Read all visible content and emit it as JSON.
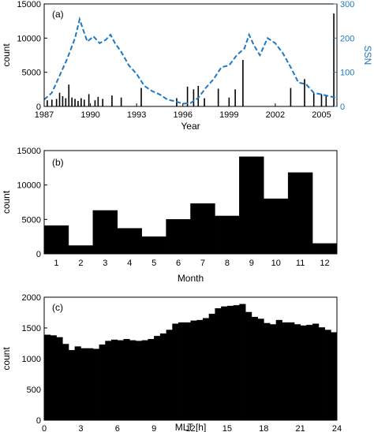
{
  "chart_data": [
    {
      "type": "bar",
      "panel_label": "(a)",
      "xlabel": "Year",
      "ylabel": "count",
      "y2label": "SSN",
      "xlim": [
        1987,
        2006
      ],
      "ylim": [
        0,
        15000
      ],
      "y2lim": [
        0,
        300
      ],
      "xticks": [
        "1987",
        "1990",
        "1993",
        "1996",
        "1999",
        "2002",
        "2005"
      ],
      "yticks": [
        "0",
        "5000",
        "10000",
        "15000"
      ],
      "y2ticks": [
        "0",
        "100",
        "200",
        "300"
      ],
      "colors": {
        "bars": "#000000",
        "ssn": "#1f78c1"
      },
      "bars": {
        "x": [
          1987.2,
          1987.5,
          1987.8,
          1988.0,
          1988.2,
          1988.4,
          1988.6,
          1988.8,
          1989.0,
          1989.2,
          1989.4,
          1989.6,
          1989.9,
          1990.3,
          1990.5,
          1990.8,
          1991.4,
          1992.0,
          1993.3,
          1995.6,
          1996.3,
          1996.7,
          1997.0,
          1997.4,
          1998.3,
          1999.0,
          1999.4,
          1999.9,
          2003.0,
          2003.9,
          2004.5,
          2005.0,
          2005.3,
          2005.8
        ],
        "values": [
          900,
          1000,
          1100,
          2000,
          1500,
          1200,
          3200,
          1300,
          1100,
          800,
          1200,
          1000,
          1800,
          900,
          1400,
          1100,
          1600,
          1300,
          2700,
          1200,
          2900,
          2500,
          3000,
          1200,
          2600,
          1300,
          2500,
          6800,
          2700,
          4000,
          2000,
          1800,
          1500,
          13600
        ]
      },
      "ssn": {
        "x": [
          1987.0,
          1987.5,
          1988.0,
          1988.5,
          1989.0,
          1989.3,
          1989.6,
          1989.8,
          1990.2,
          1990.6,
          1991.0,
          1991.3,
          1991.6,
          1992.0,
          1992.5,
          1993.0,
          1993.5,
          1994.0,
          1994.5,
          1995.0,
          1995.5,
          1996.0,
          1996.5,
          1997.0,
          1997.5,
          1998.0,
          1998.5,
          1999.0,
          1999.5,
          2000.0,
          2000.3,
          2000.6,
          2001.0,
          2001.5,
          2002.0,
          2002.5,
          2003.0,
          2003.5,
          2004.0,
          2004.5,
          2005.0,
          2005.5,
          2006.0
        ],
        "values": [
          20,
          40,
          90,
          140,
          200,
          255,
          215,
          190,
          205,
          185,
          195,
          210,
          185,
          160,
          120,
          95,
          60,
          45,
          35,
          20,
          15,
          8,
          10,
          25,
          55,
          80,
          115,
          120,
          150,
          170,
          210,
          180,
          150,
          200,
          185,
          155,
          115,
          70,
          65,
          40,
          35,
          30,
          25
        ]
      }
    },
    {
      "type": "bar",
      "panel_label": "(b)",
      "xlabel": "Month",
      "ylabel": "count",
      "ylim": [
        0,
        15000
      ],
      "yticks": [
        "0",
        "5000",
        "10000",
        "15000"
      ],
      "categories": [
        "1",
        "2",
        "3",
        "4",
        "5",
        "6",
        "7",
        "8",
        "9",
        "10",
        "11",
        "12"
      ],
      "values": [
        4100,
        1200,
        6300,
        3700,
        2500,
        5000,
        7300,
        5500,
        14100,
        8000,
        11800,
        1500
      ]
    },
    {
      "type": "bar",
      "panel_label": "(c)",
      "xlabel": "MLT [h]",
      "ylabel": "count",
      "xlim": [
        0,
        24
      ],
      "ylim": [
        0,
        2000
      ],
      "xticks": [
        "0",
        "3",
        "6",
        "9",
        "12",
        "15",
        "18",
        "21",
        "24"
      ],
      "yticks": [
        "0",
        "500",
        "1000",
        "1500",
        "2000"
      ],
      "bin_width": 0.5,
      "values": [
        1390,
        1380,
        1350,
        1240,
        1140,
        1200,
        1170,
        1170,
        1160,
        1230,
        1290,
        1310,
        1300,
        1320,
        1300,
        1290,
        1300,
        1320,
        1370,
        1410,
        1470,
        1570,
        1590,
        1590,
        1620,
        1630,
        1660,
        1730,
        1820,
        1850,
        1860,
        1870,
        1890,
        1760,
        1680,
        1650,
        1580,
        1560,
        1630,
        1590,
        1590,
        1560,
        1540,
        1550,
        1570,
        1510,
        1470,
        1430
      ]
    }
  ]
}
